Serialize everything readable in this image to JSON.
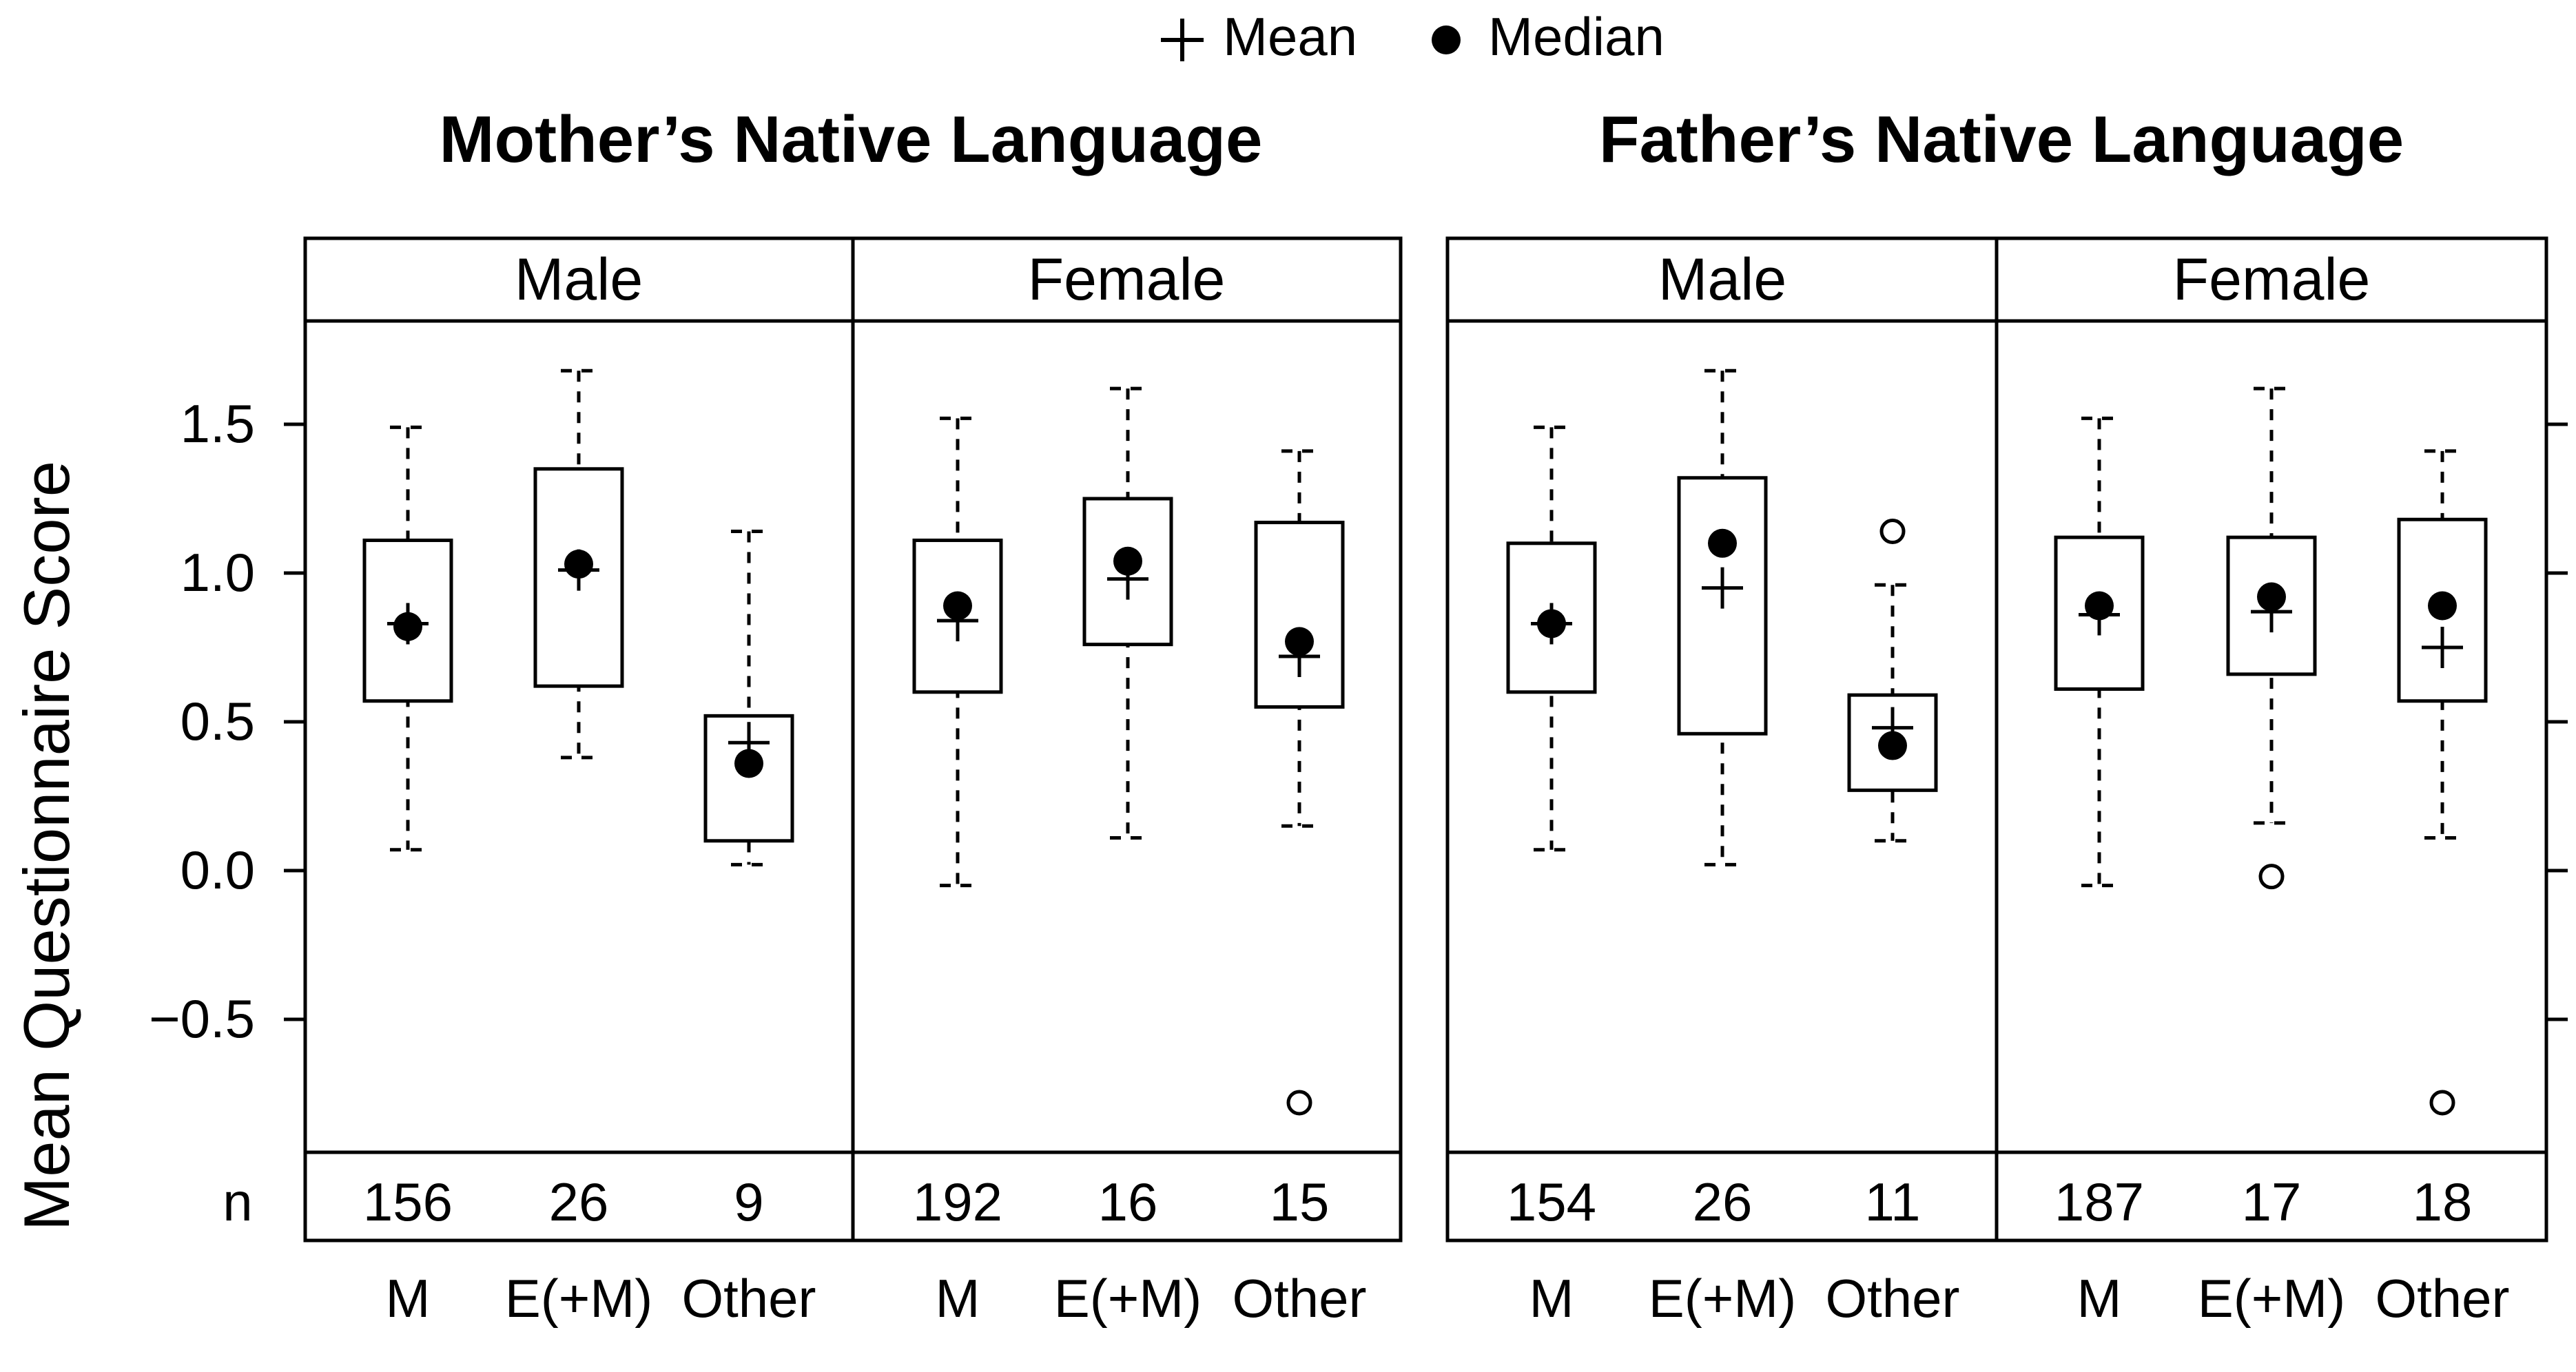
{
  "legend": {
    "mean_label": "Mean",
    "median_label": "Median"
  },
  "y_axis_label": "Mean Questionnaire Score",
  "n_label": "n",
  "chart_data": [
    {
      "type": "boxplot",
      "title": "Mother’s Native Language",
      "ylabel": "Mean Questionnaire Score",
      "ylim": [
        -0.95,
        1.85
      ],
      "yticks": [
        -0.5,
        0.0,
        0.5,
        1.0,
        1.5
      ],
      "ytick_labels": [
        "−0.5",
        "0.0",
        "0.5",
        "1.0",
        "1.5"
      ],
      "categories": [
        "M",
        "E(+M)",
        "Other"
      ],
      "legend_position": "top-center",
      "grid": false,
      "panels": [
        {
          "name": "Male",
          "groups": [
            {
              "category": "M",
              "n": "156",
              "whisker_low": 0.07,
              "q1": 0.57,
              "median": 0.82,
              "mean": 0.83,
              "q3": 1.11,
              "whisker_high": 1.49,
              "outliers": []
            },
            {
              "category": "E(+M)",
              "n": "26",
              "whisker_low": 0.38,
              "q1": 0.62,
              "median": 1.03,
              "mean": 1.01,
              "q3": 1.35,
              "whisker_high": 1.68,
              "outliers": []
            },
            {
              "category": "Other",
              "n": "9",
              "whisker_low": 0.02,
              "q1": 0.1,
              "median": 0.36,
              "mean": 0.43,
              "q3": 0.52,
              "whisker_high": 1.14,
              "outliers": []
            }
          ]
        },
        {
          "name": "Female",
          "groups": [
            {
              "category": "M",
              "n": "192",
              "whisker_low": -0.05,
              "q1": 0.6,
              "median": 0.89,
              "mean": 0.84,
              "q3": 1.11,
              "whisker_high": 1.52,
              "outliers": []
            },
            {
              "category": "E(+M)",
              "n": "16",
              "whisker_low": 0.11,
              "q1": 0.76,
              "median": 1.04,
              "mean": 0.98,
              "q3": 1.25,
              "whisker_high": 1.62,
              "outliers": []
            },
            {
              "category": "Other",
              "n": "15",
              "whisker_low": 0.15,
              "q1": 0.55,
              "median": 0.77,
              "mean": 0.72,
              "q3": 1.17,
              "whisker_high": 1.41,
              "outliers": [
                -0.78
              ]
            }
          ]
        }
      ]
    },
    {
      "type": "boxplot",
      "title": "Father’s Native Language",
      "ylim": [
        -0.95,
        1.85
      ],
      "yticks": [
        -0.5,
        0.0,
        0.5,
        1.0,
        1.5
      ],
      "categories": [
        "M",
        "E(+M)",
        "Other"
      ],
      "grid": false,
      "panels": [
        {
          "name": "Male",
          "groups": [
            {
              "category": "M",
              "n": "154",
              "whisker_low": 0.07,
              "q1": 0.6,
              "median": 0.83,
              "mean": 0.83,
              "q3": 1.1,
              "whisker_high": 1.49,
              "outliers": []
            },
            {
              "category": "E(+M)",
              "n": "26",
              "whisker_low": 0.02,
              "q1": 0.46,
              "median": 1.1,
              "mean": 0.95,
              "q3": 1.32,
              "whisker_high": 1.68,
              "outliers": []
            },
            {
              "category": "Other",
              "n": "11",
              "whisker_low": 0.1,
              "q1": 0.27,
              "median": 0.42,
              "mean": 0.48,
              "q3": 0.59,
              "whisker_high": 0.96,
              "outliers": [
                1.14
              ]
            }
          ]
        },
        {
          "name": "Female",
          "groups": [
            {
              "category": "M",
              "n": "187",
              "whisker_low": -0.05,
              "q1": 0.61,
              "median": 0.89,
              "mean": 0.86,
              "q3": 1.12,
              "whisker_high": 1.52,
              "outliers": []
            },
            {
              "category": "E(+M)",
              "n": "17",
              "whisker_low": 0.16,
              "q1": 0.66,
              "median": 0.92,
              "mean": 0.87,
              "q3": 1.12,
              "whisker_high": 1.62,
              "outliers": [
                -0.02
              ]
            },
            {
              "category": "Other",
              "n": "18",
              "whisker_low": 0.11,
              "q1": 0.57,
              "median": 0.89,
              "mean": 0.75,
              "q3": 1.18,
              "whisker_high": 1.41,
              "outliers": [
                -0.78
              ]
            }
          ]
        }
      ]
    }
  ]
}
